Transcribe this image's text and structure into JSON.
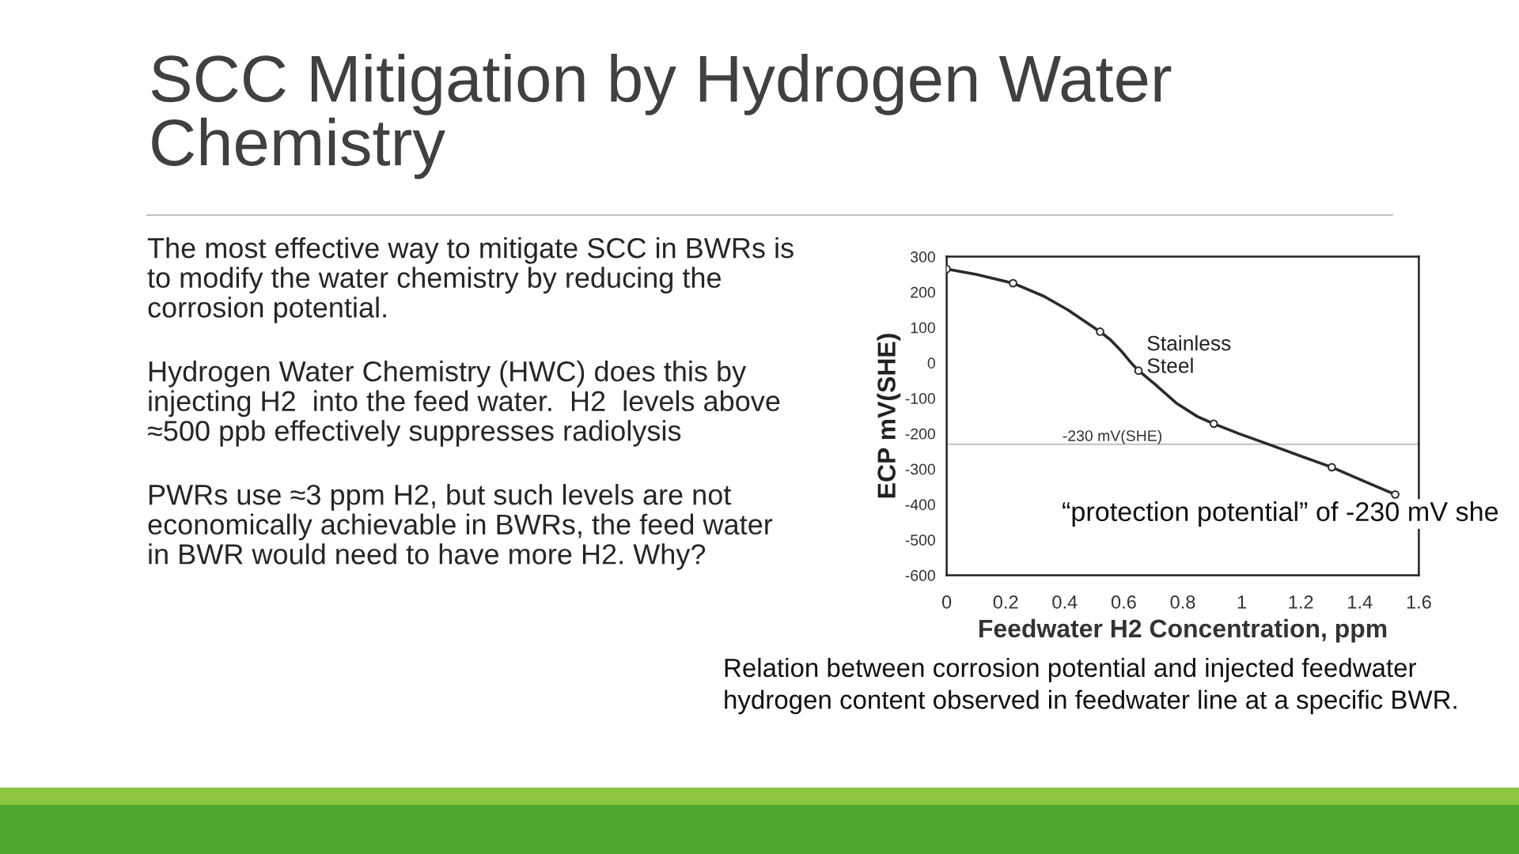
{
  "chart_data": {
    "type": "line",
    "title": "SCC Mitigation by Hydrogen Water\nChemistry",
    "xlabel": "Feedwater H2 Concentration, ppm",
    "ylabel": "ECP mV(SHE)",
    "series": [
      {
        "color": "#2b2b2b",
        "x": [
          0,
          0.1,
          0.225,
          0.33,
          0.41,
          0.52,
          0.555,
          0.59,
          0.625,
          0.65,
          0.705,
          0.78,
          0.85,
          0.905,
          0.99,
          1.1,
          1.205,
          1.305,
          1.41,
          1.52
        ],
        "values": [
          265,
          250,
          225,
          188,
          150,
          88,
          65,
          35,
          0,
          -22,
          -60,
          -115,
          -152,
          -172,
          -200,
          -233,
          -265,
          -295,
          -333,
          -372
        ]
      },
      {
        "type": "scatter",
        "marker": "circle",
        "color": "#2b2b2b",
        "x": [
          0,
          0.225,
          0.52,
          0.65,
          0.905,
          1.305,
          1.52
        ],
        "values": [
          265,
          225,
          88,
          -22,
          -172,
          -295,
          -372
        ]
      }
    ],
    "xlim": [
      0,
      1.6
    ],
    "xticks": [
      0,
      0.2,
      0.4,
      0.6,
      0.8,
      1,
      1.2,
      1.4,
      1.6
    ],
    "ylim": [
      -600,
      300
    ],
    "yticks": [
      -600,
      -500,
      -400,
      -300,
      -200,
      -100,
      0,
      100,
      200,
      300
    ],
    "ref_lines": [
      {
        "axis": "y",
        "value": -230,
        "label": "-230 mV(SHE)",
        "color": "#c8c8c8"
      }
    ],
    "annotations": [
      "The most effective way to mitigate SCC in BWRs is\nto modify the water chemistry by reducing the\ncorrosion potential.",
      "Hydrogen Water Chemistry (HWC) does this by\ninjecting H2  into the feed water.  H2  levels above\n≈500 ppb effectively suppresses radiolysis",
      "PWRs use ≈3 ppm H2, but such levels are not\neconomically achievable in BWRs, the feed water\nin BWR would need to have more H2. Why?",
      {
        "text": "Stainless\nSteel",
        "x": 0.655,
        "y": -22
      },
      "“protection potential” of -230 mV she",
      "Relation between corrosion potential and injected feedwater\nhydrogen content observed in feedwater line at a specific BWR."
    ]
  }
}
